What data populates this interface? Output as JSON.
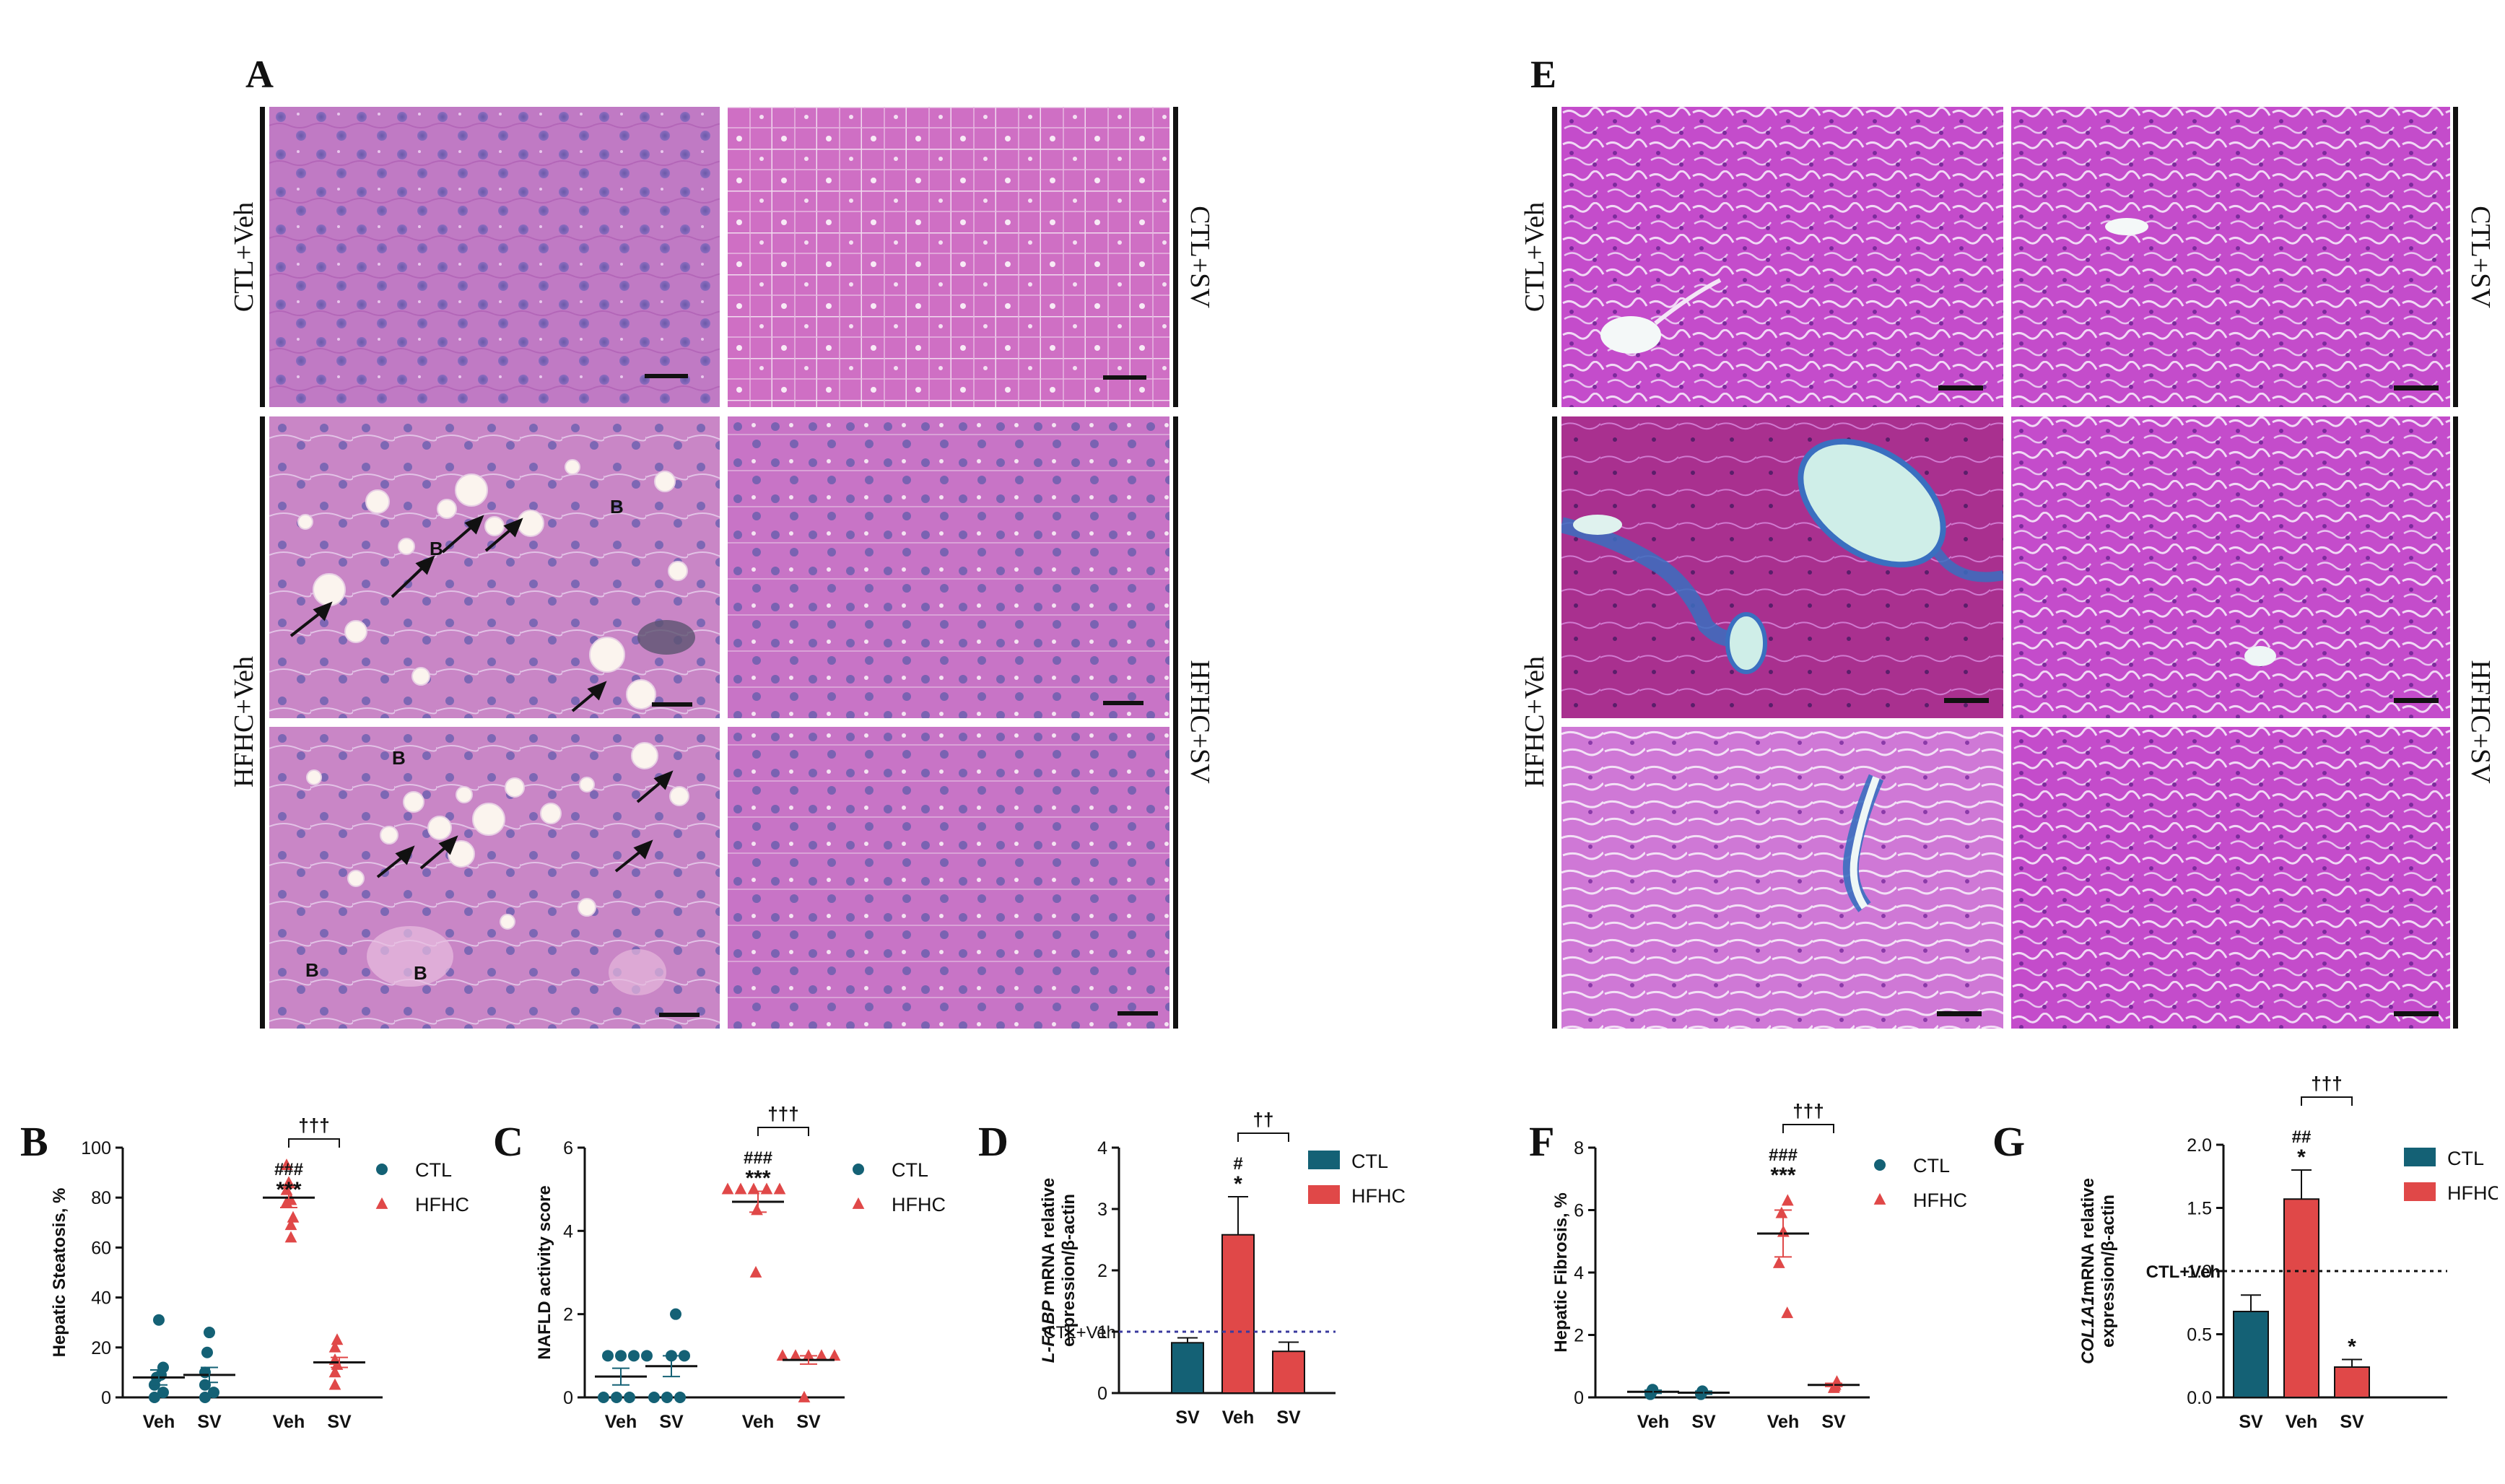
{
  "figure": {
    "letters": {
      "A": "A",
      "E": "E"
    },
    "he_groups": {
      "ctl_veh": "CTL+Veh",
      "ctl_sv": "CTL+SV",
      "hfhc_veh": "HFHC+Veh",
      "hfhc_sv": "HFHC+SV"
    },
    "mt_groups": {
      "ctl_veh": "CTL+Veh",
      "ctl_sv": "CTL+SV",
      "hfhc_veh": "HFHC+Veh",
      "hfhc_sv": "HFHC+SV"
    },
    "he_annotations": {
      "arrow": "↗",
      "ballooning": "B"
    },
    "colors": {
      "he_stain": "#c277c4",
      "mt_stain": "#c04ac9",
      "ctl": "#146175",
      "hfhc": "#e04848",
      "fat_vacuole": "#fbf4ee",
      "collagen": "#3a6fc0"
    }
  },
  "chart_data": [
    {
      "panel": "B",
      "type": "scatter",
      "ylabel": "Hepatic Steatosis, %",
      "ylim": [
        0,
        100
      ],
      "yticks": [
        0,
        20,
        40,
        60,
        80,
        100
      ],
      "categories": [
        "Veh",
        "SV",
        "Veh",
        "SV"
      ],
      "legend": [
        "CTL",
        "HFHC"
      ],
      "series": [
        {
          "name": "CTL",
          "group": "CTL",
          "points": [
            [
              0,
              31
            ],
            [
              0,
              12
            ],
            [
              0,
              8
            ],
            [
              0,
              5
            ],
            [
              0,
              2
            ],
            [
              0,
              0
            ],
            [
              0,
              9
            ],
            [
              1,
              26
            ],
            [
              1,
              18
            ],
            [
              1,
              10
            ],
            [
              1,
              5
            ],
            [
              1,
              2
            ],
            [
              1,
              0
            ]
          ],
          "mean": [
            [
              0,
              8
            ],
            [
              1,
              9
            ]
          ],
          "sem": [
            [
              0,
              3
            ],
            [
              1,
              3
            ]
          ]
        },
        {
          "name": "HFHC",
          "group": "HFHC",
          "points": [
            [
              2,
              93
            ],
            [
              2,
              86
            ],
            [
              2,
              83
            ],
            [
              2,
              79
            ],
            [
              2,
              78
            ],
            [
              2,
              72
            ],
            [
              2,
              69
            ],
            [
              2,
              64
            ],
            [
              3,
              23
            ],
            [
              3,
              20
            ],
            [
              3,
              15
            ],
            [
              3,
              13
            ],
            [
              3,
              10
            ],
            [
              3,
              5
            ]
          ],
          "mean": [
            [
              2,
              80
            ],
            [
              3,
              14
            ]
          ],
          "sem": [
            [
              2,
              4
            ],
            [
              3,
              2
            ]
          ]
        }
      ],
      "annotations": {
        "sig1": "***",
        "sig2": "###",
        "bracket": "†††"
      }
    },
    {
      "panel": "C",
      "type": "scatter",
      "ylabel": "NAFLD activity score",
      "ylim": [
        0,
        6
      ],
      "yticks": [
        0,
        2,
        4,
        6
      ],
      "categories": [
        "Veh",
        "SV",
        "Veh",
        "SV"
      ],
      "legend": [
        "CTL",
        "HFHC"
      ],
      "series": [
        {
          "name": "CTL",
          "group": "CTL",
          "points": [
            [
              0,
              1
            ],
            [
              0,
              1
            ],
            [
              0,
              1
            ],
            [
              0,
              0
            ],
            [
              0,
              0
            ],
            [
              0,
              0
            ],
            [
              0,
              1
            ],
            [
              1,
              2
            ],
            [
              1,
              1
            ],
            [
              1,
              1
            ],
            [
              1,
              0
            ],
            [
              1,
              0
            ],
            [
              1,
              0
            ]
          ],
          "mean": [
            [
              0,
              0.5
            ],
            [
              1,
              0.75
            ]
          ],
          "sem": [
            [
              0,
              0.2
            ],
            [
              1,
              0.25
            ]
          ]
        },
        {
          "name": "HFHC",
          "group": "HFHC",
          "points": [
            [
              2,
              5
            ],
            [
              2,
              5
            ],
            [
              2,
              5
            ],
            [
              2,
              5
            ],
            [
              2,
              5
            ],
            [
              2,
              4.5
            ],
            [
              2,
              3
            ],
            [
              3,
              1
            ],
            [
              3,
              1
            ],
            [
              3,
              1
            ],
            [
              3,
              1
            ],
            [
              3,
              1
            ],
            [
              3,
              0
            ]
          ],
          "mean": [
            [
              2,
              4.7
            ],
            [
              3,
              0.9
            ]
          ],
          "sem": [
            [
              2,
              0.25
            ],
            [
              3,
              0.1
            ]
          ]
        }
      ],
      "annotations": {
        "sig1": "***",
        "sig2": "###",
        "bracket": "†††"
      }
    },
    {
      "panel": "D",
      "type": "bar",
      "ylabel": "L-FABP mRNA relative expression/β-actin",
      "ylabel_gene": "L-FABP",
      "ylabel_rest": " mRNA relative",
      "ylabel_line2": "expression/β-actin",
      "ylim": [
        0,
        4
      ],
      "yticks": [
        0,
        1,
        2,
        3,
        4
      ],
      "categories": [
        "SV",
        "Veh",
        "SV"
      ],
      "values": [
        0.82,
        2.58,
        0.68
      ],
      "errors": [
        0.08,
        0.62,
        0.15
      ],
      "groups": [
        "CTL",
        "HFHC",
        "HFHC"
      ],
      "legend": [
        "CTL",
        "HFHC"
      ],
      "reference": {
        "value": 1,
        "label": "CTL+Veh"
      },
      "annotations": {
        "sig1": "*",
        "sig2": "#",
        "bracket": "††"
      }
    },
    {
      "panel": "F",
      "type": "scatter",
      "ylabel": "Hepatic Fibrosis, %",
      "ylim": [
        0,
        8
      ],
      "yticks": [
        0,
        2,
        4,
        6,
        8
      ],
      "categories": [
        "Veh",
        "SV",
        "Veh",
        "SV"
      ],
      "legend": [
        "CTL",
        "HFHC"
      ],
      "series": [
        {
          "name": "CTL",
          "group": "CTL",
          "points": [
            [
              0,
              0.25
            ],
            [
              0,
              0.2
            ],
            [
              0,
              0.15
            ],
            [
              0,
              0.1
            ],
            [
              1,
              0.2
            ],
            [
              1,
              0.15
            ],
            [
              1,
              0.1
            ]
          ],
          "mean": [
            [
              0,
              0.18
            ],
            [
              1,
              0.15
            ]
          ],
          "sem": [
            [
              0,
              0.05
            ],
            [
              1,
              0.05
            ]
          ]
        },
        {
          "name": "HFHC",
          "group": "HFHC",
          "points": [
            [
              2,
              6.3
            ],
            [
              2,
              5.9
            ],
            [
              2,
              5.3
            ],
            [
              2,
              4.3
            ],
            [
              2,
              2.7
            ],
            [
              3,
              0.5
            ],
            [
              3,
              0.4
            ],
            [
              3,
              0.3
            ],
            [
              3,
              0.35
            ]
          ],
          "mean": [
            [
              2,
              5.25
            ],
            [
              3,
              0.4
            ]
          ],
          "sem": [
            [
              2,
              0.75
            ],
            [
              3,
              0.05
            ]
          ]
        }
      ],
      "annotations": {
        "sig1": "***",
        "sig2": "###",
        "bracket": "†††"
      }
    },
    {
      "panel": "G",
      "type": "bar",
      "ylabel": "COL1A1 mRNA relative expression/β-actin",
      "ylabel_gene": "COL1A1",
      "ylabel_rest": "mRNA relative",
      "ylabel_line2": "expression/β-actin",
      "ylim": [
        0,
        2
      ],
      "yticks": [
        "0.0",
        "0.5",
        "1.0",
        "1.5",
        "2.0"
      ],
      "categories": [
        "SV",
        "Veh",
        "SV"
      ],
      "values": [
        0.68,
        1.57,
        0.24
      ],
      "errors": [
        0.13,
        0.23,
        0.06
      ],
      "groups": [
        "CTL",
        "HFHC",
        "HFHC"
      ],
      "legend": [
        "CTL",
        "HFHC"
      ],
      "reference": {
        "value": 1,
        "label": "CTL+Veh"
      },
      "annotations": {
        "sig1": "*",
        "sig2": "##",
        "sig3": "*",
        "bracket": "†††"
      }
    }
  ]
}
